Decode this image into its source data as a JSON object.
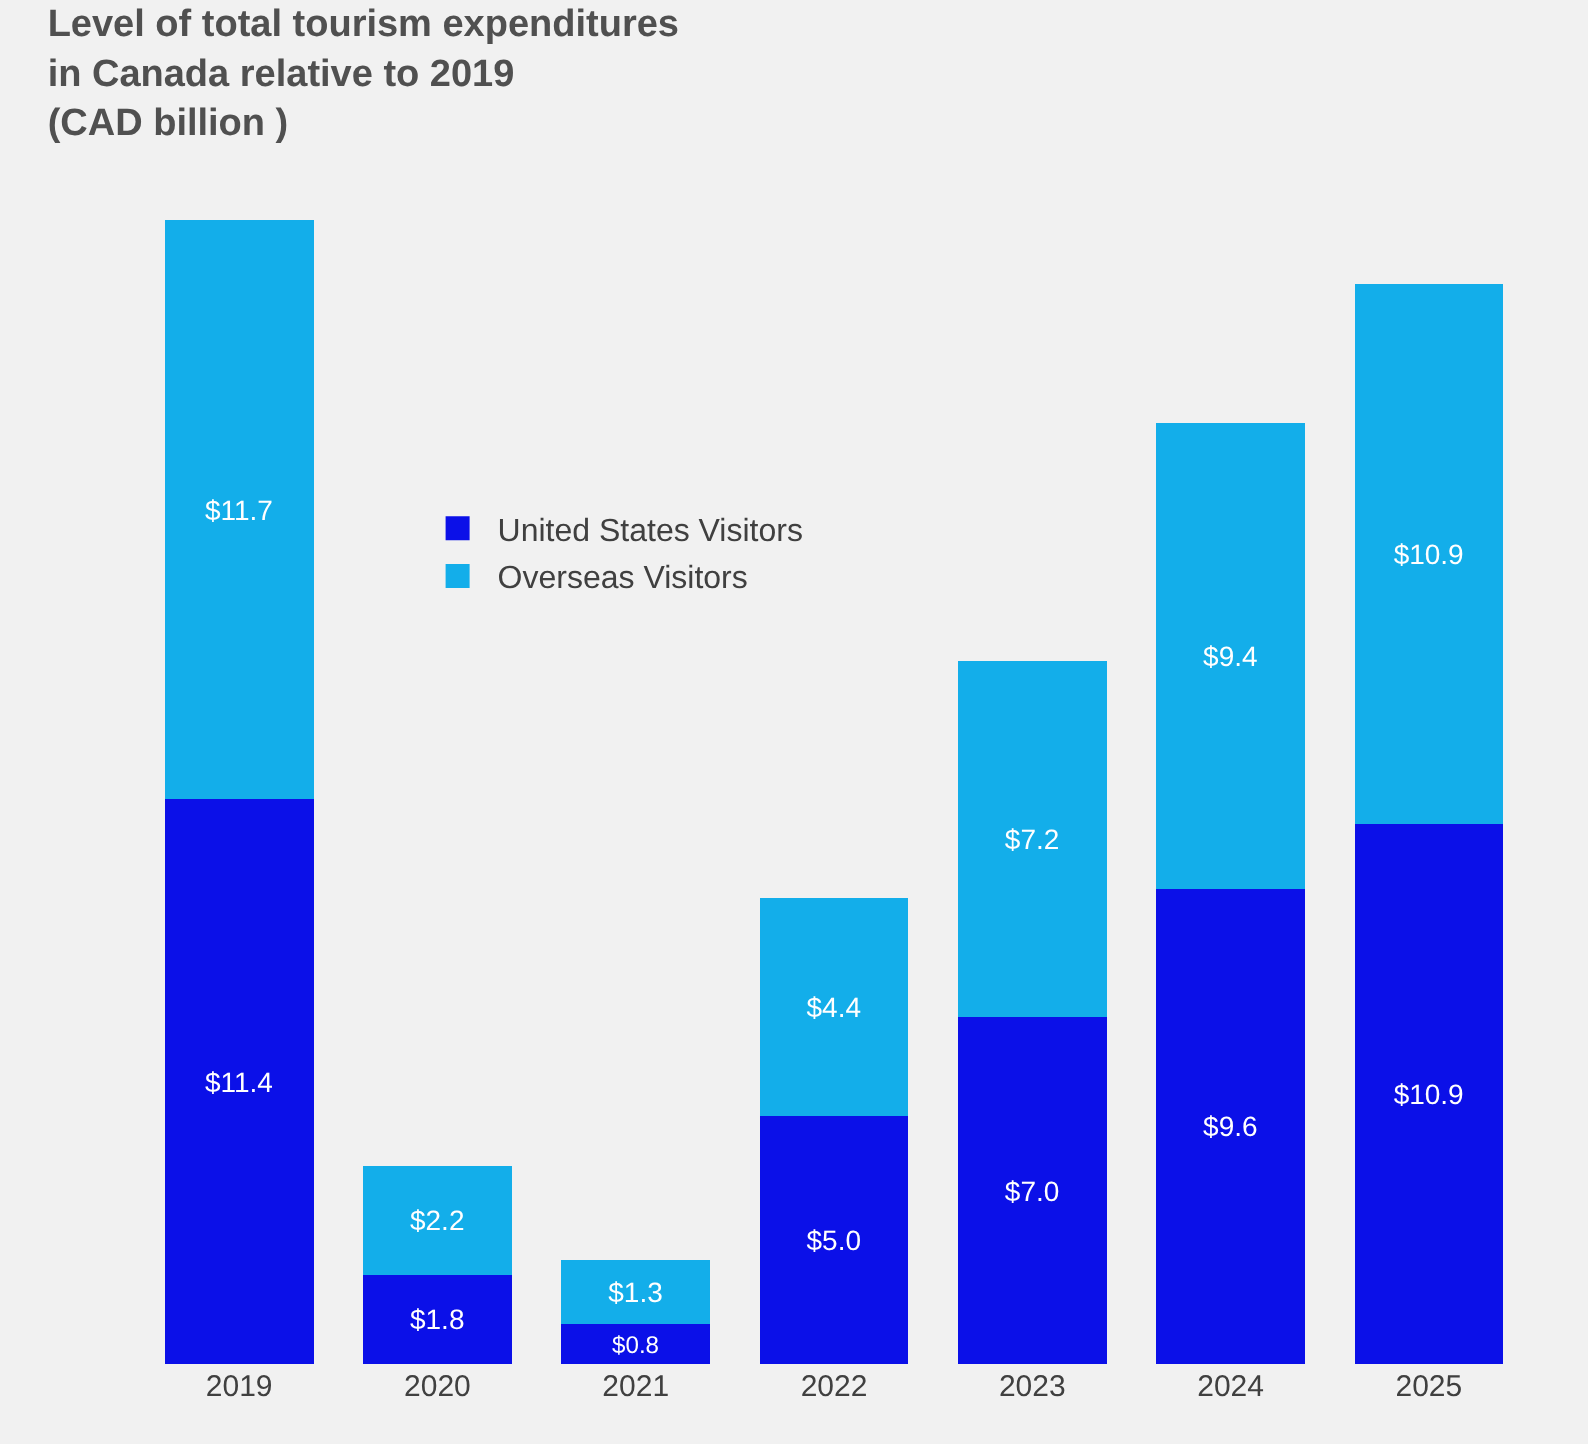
{
  "chart_data": {
    "type": "bar",
    "title": "Level of total tourism expenditures\nin Canada relative to 2019\n(CAD billion )",
    "categories": [
      "2019",
      "2020",
      "2021",
      "2022",
      "2023",
      "2024",
      "2025"
    ],
    "stacked": true,
    "legend": "top left",
    "tick_labels": "x",
    "grid": false,
    "series": [
      {
        "name": "United States Visitors",
        "color": "#0b10e8",
        "values": [
          11.4,
          1.8,
          0.8,
          5.0,
          7.0,
          9.6,
          10.9
        ],
        "value_labels": [
          "$11.4",
          "$1.8",
          "$0.8",
          "$5.0",
          "$7.0",
          "$9.6",
          "$10.9"
        ]
      },
      {
        "name": "Overseas Visitors",
        "color": "#13aeea",
        "values": [
          11.7,
          2.2,
          1.3,
          4.4,
          7.2,
          9.4,
          10.9
        ],
        "value_labels": [
          "$11.7",
          "$2.2",
          "$1.3",
          "$4.4",
          "$7.2",
          "$9.4",
          "$10.9"
        ]
      }
    ]
  }
}
